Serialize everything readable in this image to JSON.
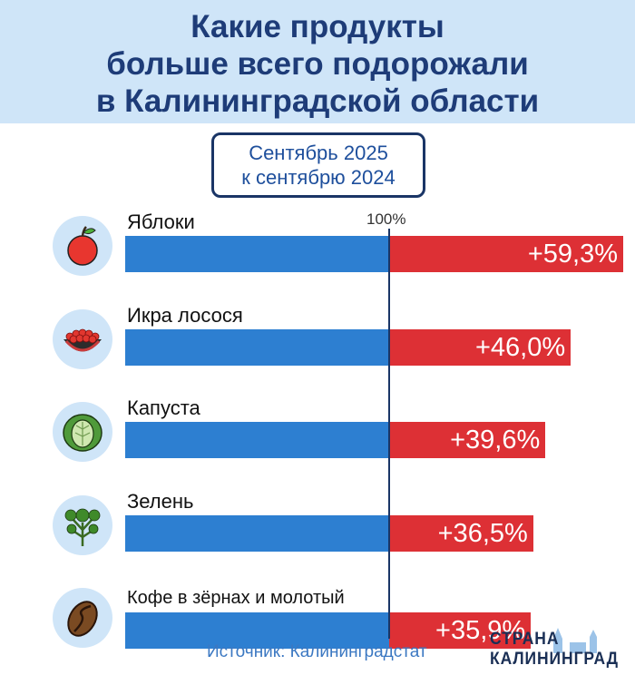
{
  "header": {
    "title_lines": [
      "Какие продукты",
      "больше всего подорожали",
      "в Калининградской области"
    ]
  },
  "period": {
    "line1": "Сентябрь 2025",
    "line2": "к сентябрю 2024"
  },
  "chart_data": {
    "type": "bar",
    "baseline_label": "100%",
    "categories": [
      "Яблоки",
      "Икра лосося",
      "Капуста",
      "Зелень",
      "Кофе в зёрнах и молотый"
    ],
    "values": [
      59.3,
      46.0,
      39.6,
      36.5,
      35.9
    ],
    "value_labels": [
      "+59,3%",
      "+46,0%",
      "+39,6%",
      "+36,5%",
      "+35,9%"
    ],
    "icons": [
      "apple-icon",
      "salmon-caviar-icon",
      "cabbage-icon",
      "parsley-icon",
      "coffee-bean-icon"
    ],
    "colors": {
      "base": "#2d7fd1",
      "increase": "#dd3035"
    }
  },
  "footer": {
    "source": "Источник: Калининградстат",
    "logo_line1": "СТРАНА",
    "logo_line2": "КАЛИНИНГРАД"
  }
}
